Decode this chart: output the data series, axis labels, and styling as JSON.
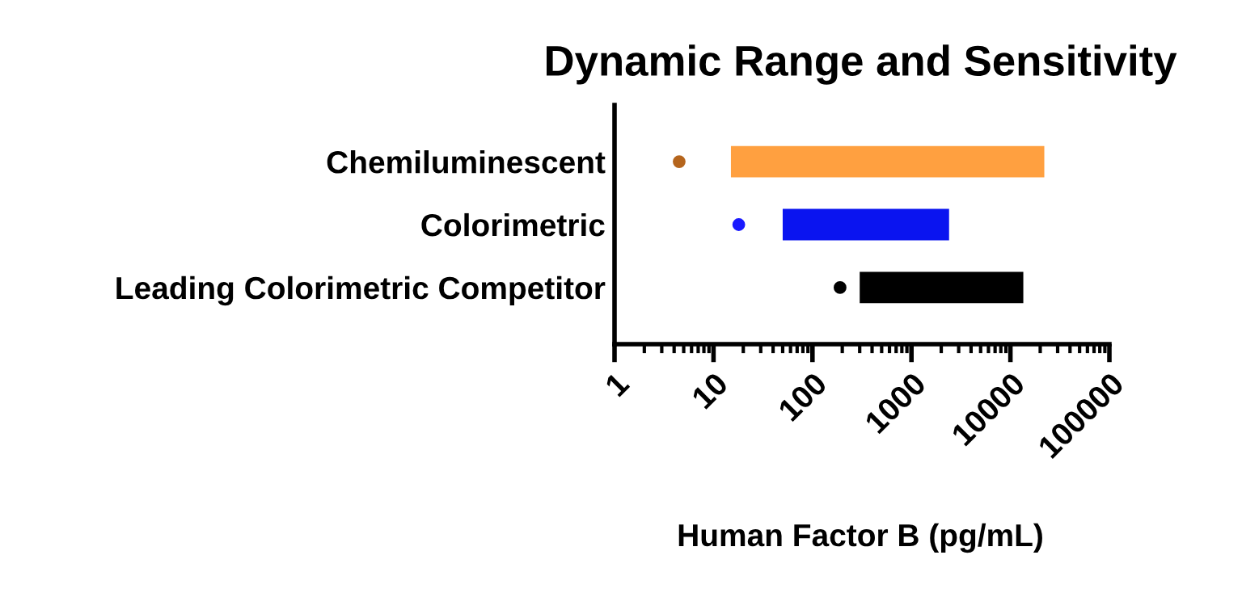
{
  "chart_data": {
    "type": "bar",
    "orientation": "horizontal",
    "title": "Dynamic Range and Sensitivity",
    "xlabel": "Human Factor B (pg/mL)",
    "categories": [
      "Chemiluminescent",
      "Colorimetric",
      "Leading Colorimetric Competitor"
    ],
    "series": [
      {
        "base": [
          15,
          50,
          300
        ],
        "values": [
          21985,
          2350,
          13200
        ],
        "colors": [
          "#ffa040",
          "#0a14f0",
          "#000000"
        ]
      },
      {
        "type": "scatter",
        "values": [
          4.5,
          18,
          190
        ],
        "colors": [
          "#b5651d",
          "#1a1aff",
          "#000000"
        ],
        "marker": "circle"
      }
    ],
    "log": "x",
    "xlim": [
      1,
      100000
    ],
    "xticks": [
      1,
      10,
      100,
      1000,
      10000,
      100000
    ],
    "grid": false,
    "legend": false
  }
}
